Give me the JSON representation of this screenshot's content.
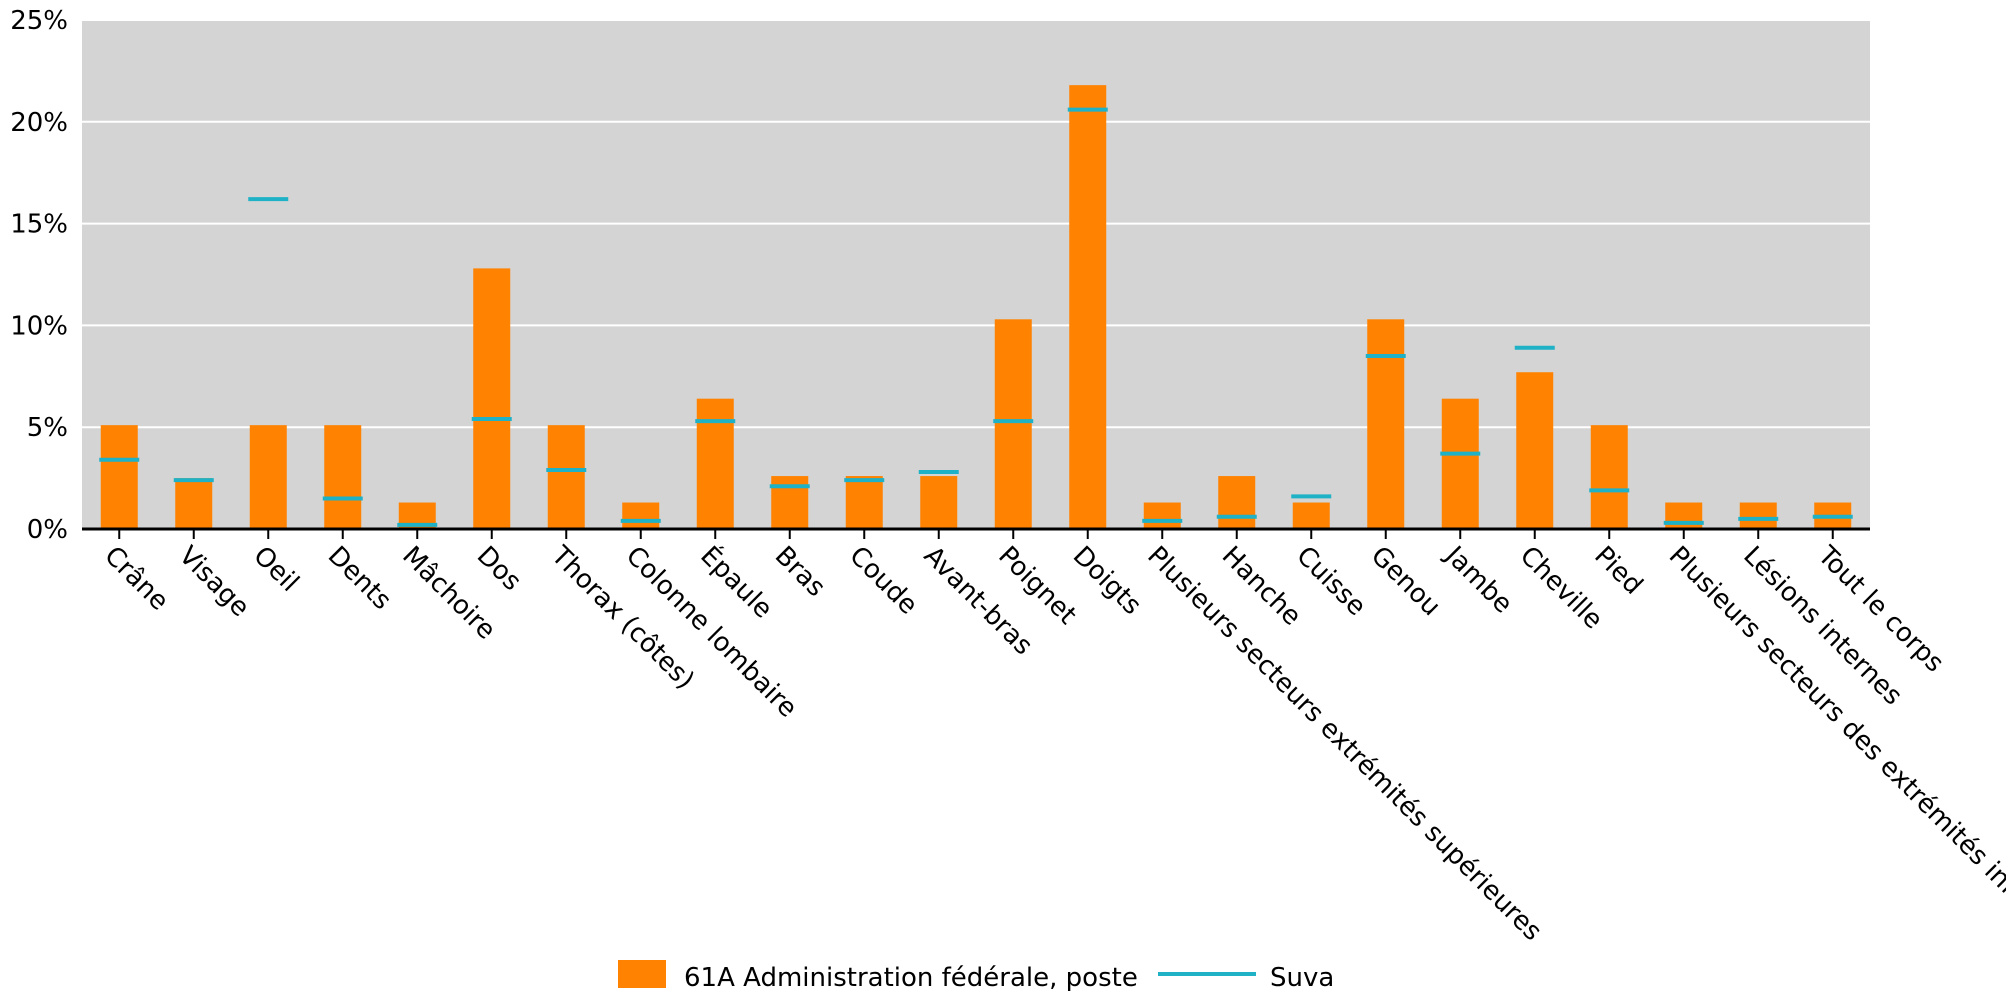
{
  "chart_data": {
    "type": "bar",
    "categories": [
      "Crâne",
      "Visage",
      "Oeil",
      "Dents",
      "Mâchoire",
      "Dos",
      "Thorax (côtes)",
      "Colonne lombaire",
      "Épaule",
      "Bras",
      "Coude",
      "Avant-bras",
      "Poignet",
      "Doigts",
      "Plusieurs secteurs extrémités supérieures",
      "Hanche",
      "Cuisse",
      "Genou",
      "Jambe",
      "Cheville",
      "Pied",
      "Plusieurs secteurs des extrémités inférie",
      "Lésions internes",
      "Tout le corps"
    ],
    "series": [
      {
        "name": "61A Administration fédérale, poste",
        "kind": "bar",
        "values": [
          5.1,
          2.5,
          5.1,
          5.1,
          1.3,
          12.8,
          5.1,
          1.3,
          6.4,
          2.6,
          2.6,
          2.6,
          10.3,
          21.8,
          1.3,
          2.6,
          1.3,
          10.3,
          6.4,
          7.7,
          5.1,
          1.3,
          1.3,
          1.3
        ]
      },
      {
        "name": "Suva",
        "kind": "marker",
        "values": [
          3.4,
          2.4,
          16.2,
          1.5,
          0.2,
          5.4,
          2.9,
          0.4,
          5.3,
          2.1,
          2.4,
          2.8,
          5.3,
          20.6,
          0.4,
          0.6,
          1.6,
          8.5,
          3.7,
          8.9,
          1.9,
          0.3,
          0.5,
          0.6
        ]
      }
    ],
    "yticks": [
      "0%",
      "5%",
      "10%",
      "15%",
      "20%",
      "25%"
    ],
    "ylim": [
      0,
      25
    ],
    "grid": true,
    "legend_position": "bottom-center",
    "colors": {
      "bar": "#ff8200",
      "marker": "#1fb2c6",
      "plot_bg": "#d4d4d4",
      "gridline": "#ffffff",
      "axis": "#000000"
    }
  }
}
